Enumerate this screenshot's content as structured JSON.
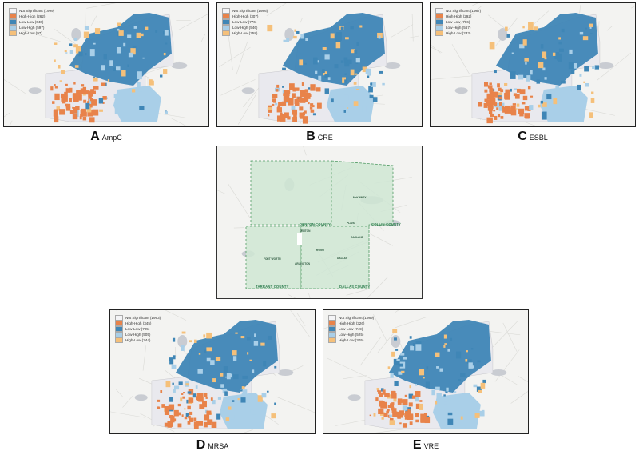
{
  "legend_colors": {
    "not_significant": "#f4f4f6",
    "high_high": "#e8834a",
    "low_low": "#3f86b6",
    "low_high": "#a9cfe8",
    "high_low": "#f5c07a"
  },
  "panels": [
    {
      "id": "A",
      "letter": "A",
      "name": "AmpC",
      "legend": [
        "Not Significant (1999)",
        "High-High (262)",
        "Low-Low (640)",
        "Low-High (597)",
        "High-Low (97)"
      ]
    },
    {
      "id": "B",
      "letter": "B",
      "name": "CRE",
      "legend": [
        "Not Significant (1986)",
        "High-High (307)",
        "Low-Low (776)",
        "Low-High (546)",
        "High-Low (258)"
      ]
    },
    {
      "id": "C",
      "letter": "C",
      "name": "ESBL",
      "legend": [
        "Not Significant (1987)",
        "High-High (292)",
        "Low-Low (706)",
        "Low-High (567)",
        "High-Low (233)"
      ]
    },
    {
      "id": "D",
      "letter": "D",
      "name": "MRSA",
      "legend": [
        "Not Significant (1993)",
        "High-High (345)",
        "Low-Low (795)",
        "Low-High (505)",
        "High-Low (244)"
      ]
    },
    {
      "id": "E",
      "letter": "E",
      "name": "VRE",
      "legend": [
        "Not Significant (1989)",
        "High-High (326)",
        "Low-Low (749)",
        "Low-High (525)",
        "High-Low (305)"
      ]
    }
  ],
  "reference_map": {
    "counties": [
      "DENTON COUNTY",
      "COLLIN COUNTY",
      "TARRANT COUNTY",
      "DALLAS COUNTY"
    ],
    "cities": [
      "McKINNEY",
      "PLANO",
      "GARLAND",
      "FORT WORTH",
      "ARLINGTON",
      "IRVING",
      "DALLAS",
      "DENTON"
    ]
  }
}
